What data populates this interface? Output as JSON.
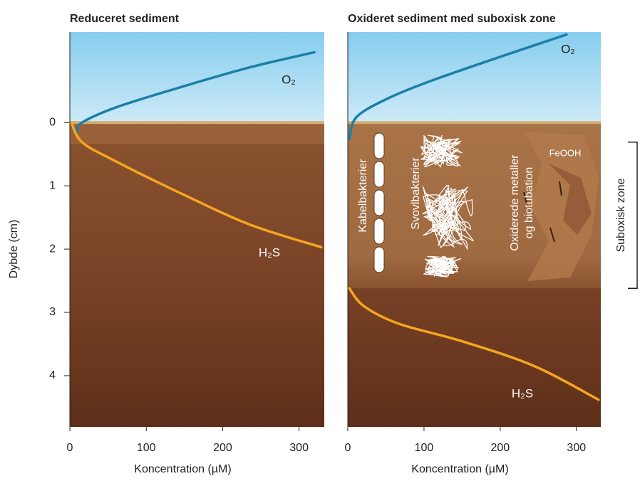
{
  "chart_data": [
    {
      "type": "line",
      "title": "Reduceret sediment",
      "xlabel": "Koncentration (µM)",
      "ylabel": "Dybde (cm)",
      "xlim": [
        0,
        333
      ],
      "ylim": [
        -1.43,
        4.81
      ],
      "y_inverted": true,
      "xticks": [
        0,
        100,
        200,
        300
      ],
      "yticks": [
        0,
        1,
        2,
        3,
        4
      ],
      "series": [
        {
          "name": "O₂",
          "color": "#1a7fa8",
          "x": [
            9,
            16,
            63,
            151,
            235,
            320
          ],
          "values": [
            0.15,
            0,
            -0.25,
            -0.58,
            -0.87,
            -1.11
          ]
        },
        {
          "name": "H₂S",
          "color": "#f7a51f",
          "x": [
            2,
            16,
            58,
            142,
            235,
            329
          ],
          "values": [
            0,
            0.31,
            0.6,
            1.1,
            1.61,
            1.97
          ]
        }
      ]
    },
    {
      "type": "line",
      "title": "Oxideret sediment med suboxisk zone",
      "xlabel": "Koncentration (µM)",
      "xlim": [
        0,
        332
      ],
      "ylim": [
        -1.43,
        4.81
      ],
      "y_inverted": true,
      "xticks": [
        0,
        100,
        200,
        300
      ],
      "series": [
        {
          "name": "O₂",
          "color": "#1a7fa8",
          "x": [
            2,
            11,
            49,
            105,
            198,
            287
          ],
          "values": [
            0.26,
            -0.08,
            -0.36,
            -0.64,
            -1.03,
            -1.39
          ]
        },
        {
          "name": "H₂S",
          "color": "#f7a51f",
          "x": [
            2,
            21,
            67,
            151,
            245,
            329
          ],
          "values": [
            2.62,
            2.9,
            3.18,
            3.46,
            3.85,
            4.38
          ]
        }
      ],
      "annotations": [
        "Kabelbakterier",
        "Svovlbakterier",
        [
          "Oxiderede metaller",
          "og biotubation"
        ],
        "FeOOH"
      ],
      "suboxic_zone": {
        "label": "Suboxisk zone",
        "range": [
          0.31,
          2.62
        ]
      }
    }
  ]
}
